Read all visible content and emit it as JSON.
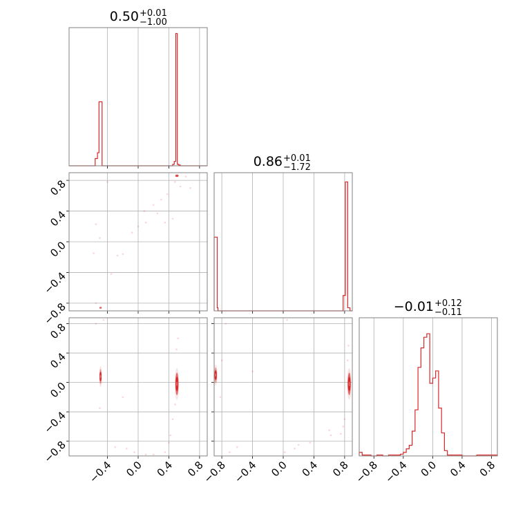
{
  "chart_data": {
    "type": "corner",
    "color": "#d62728",
    "grid": true,
    "titles": [
      {
        "value": "0.50",
        "upper": "+0.01",
        "lower": "−1.00"
      },
      {
        "value": "0.86",
        "upper": "+0.01",
        "lower": "−1.72"
      },
      {
        "value": "−0.01",
        "upper": "+0.12",
        "lower": "−0.11"
      }
    ],
    "axes": [
      {
        "range": [
          -0.9,
          0.9
        ],
        "ticks": [
          -0.4,
          0.0,
          0.4,
          0.8
        ],
        "tick_labels": [
          "−0.4",
          "0.0",
          "0.4",
          "0.8"
        ]
      },
      {
        "range": [
          -0.9,
          0.9
        ],
        "ticks": [
          -0.8,
          -0.4,
          0.0,
          0.4,
          0.8
        ],
        "tick_labels": [
          "−0.8",
          "−0.4",
          "0.0",
          "0.4",
          "0.8"
        ]
      },
      {
        "range": [
          -1.0,
          0.88
        ],
        "ticks": [
          -0.8,
          -0.4,
          0.0,
          0.4,
          0.8
        ],
        "tick_labels": [
          "−0.8",
          "−0.4",
          "0.0",
          "0.4",
          "0.8"
        ]
      }
    ],
    "histograms": [
      {
        "edges": [
          -0.9,
          -0.56,
          -0.53,
          -0.51,
          -0.49,
          -0.47,
          0.45,
          0.47,
          0.49,
          0.51,
          0.53,
          0.55,
          0.9
        ],
        "values": [
          0,
          0.05,
          0.09,
          0.44,
          0.44,
          0,
          0.01,
          0.03,
          0.91,
          0.01,
          0.005,
          0
        ]
      },
      {
        "edges": [
          -0.9,
          -0.86,
          -0.85,
          0.78,
          0.81,
          0.84,
          0.87,
          0.9
        ],
        "values": [
          0.48,
          0.02,
          0.0,
          0.1,
          0.84,
          0.02,
          0
        ]
      },
      {
        "edges": [
          -1.0,
          -0.96,
          -0.92,
          -0.84,
          -0.76,
          -0.68,
          -0.6,
          -0.52,
          -0.44,
          -0.4,
          -0.36,
          -0.32,
          -0.28,
          -0.24,
          -0.2,
          -0.16,
          -0.12,
          -0.08,
          -0.04,
          0.0,
          0.04,
          0.08,
          0.12,
          0.16,
          0.2,
          0.24,
          0.3,
          0.4,
          0.6,
          0.72,
          0.8,
          0.88
        ],
        "values": [
          0.02,
          0.005,
          0.005,
          0,
          0.005,
          0,
          0.005,
          0.005,
          0.01,
          0.02,
          0.04,
          0.06,
          0.14,
          0.26,
          0.5,
          0.61,
          0.67,
          0.69,
          0.41,
          0.44,
          0.48,
          0.27,
          0.13,
          0.03,
          0.005,
          0.005,
          0.005,
          0,
          0.005,
          0.005,
          0.005
        ]
      }
    ],
    "ranges": {
      "hist1_max": 0.95,
      "hist2_max": 0.9,
      "hist3_max": 0.78
    },
    "pairs": [
      {
        "x_param": 1,
        "y_param": 2,
        "clusters": [
          {
            "center": [
              0.505,
              0.86
            ],
            "sigma": [
              0.012,
              0.008
            ],
            "level": 1.0
          },
          {
            "center": [
              -0.49,
              -0.86
            ],
            "sigma": [
              0.008,
              0.006
            ],
            "level": 0.45
          }
        ],
        "scatter": [
          [
            0.62,
            0.85
          ],
          [
            0.48,
            0.78
          ],
          [
            0.55,
            0.72
          ],
          [
            0.38,
            0.62
          ],
          [
            0.3,
            0.55
          ],
          [
            0.25,
            0.37
          ],
          [
            0.2,
            0.48
          ],
          [
            0.08,
            0.4
          ],
          [
            0.0,
            0.2
          ],
          [
            -0.08,
            0.12
          ],
          [
            -0.2,
            -0.16
          ],
          [
            -0.27,
            -0.18
          ],
          [
            -0.35,
            -0.42
          ],
          [
            -0.5,
            0.05
          ],
          [
            -0.55,
            0.23
          ],
          [
            -0.58,
            -0.15
          ],
          [
            -0.4,
            0.78
          ],
          [
            0.45,
            0.3
          ],
          [
            0.35,
            0.25
          ],
          [
            0.68,
            0.7
          ],
          [
            -0.55,
            -0.8
          ],
          [
            0.1,
            0.25
          ]
        ]
      },
      {
        "x_param": 1,
        "y_param": 3,
        "clusters": [
          {
            "center": [
              -0.49,
              0.08
            ],
            "sigma": [
              0.008,
              0.06
            ],
            "level": 0.55
          },
          {
            "center": [
              0.505,
              -0.02
            ],
            "sigma": [
              0.012,
              0.09
            ],
            "level": 1.0
          }
        ],
        "scatter": [
          [
            0.52,
            0.6
          ],
          [
            0.5,
            0.45
          ],
          [
            0.48,
            -0.3
          ],
          [
            0.45,
            -0.5
          ],
          [
            0.42,
            -0.72
          ],
          [
            0.4,
            -0.82
          ],
          [
            0.35,
            -0.95
          ],
          [
            0.2,
            -0.98
          ],
          [
            -0.05,
            -0.95
          ],
          [
            -0.2,
            -0.2
          ],
          [
            -0.3,
            -0.88
          ],
          [
            -0.45,
            0.85
          ],
          [
            -0.55,
            0.8
          ],
          [
            -0.5,
            -0.35
          ],
          [
            0.1,
            -0.98
          ],
          [
            -0.15,
            -0.9
          ]
        ]
      },
      {
        "x_param": 2,
        "y_param": 3,
        "clusters": [
          {
            "center": [
              -0.88,
              0.1
            ],
            "sigma": [
              0.01,
              0.06
            ],
            "level": 0.5
          },
          {
            "center": [
              0.86,
              -0.02
            ],
            "sigma": [
              0.012,
              0.09
            ],
            "level": 1.0
          }
        ],
        "scatter": [
          [
            0.84,
            0.3
          ],
          [
            0.8,
            -0.5
          ],
          [
            0.78,
            -0.6
          ],
          [
            0.75,
            -0.7
          ],
          [
            0.62,
            -0.72
          ],
          [
            0.35,
            -0.82
          ],
          [
            0.15,
            -0.9
          ],
          [
            0.2,
            -0.85
          ],
          [
            -0.6,
            -0.88
          ],
          [
            -0.7,
            -0.95
          ],
          [
            0.02,
            -0.95
          ],
          [
            -0.75,
            0.8
          ],
          [
            0.85,
            0.5
          ],
          [
            0.05,
            0.85
          ],
          [
            -0.8,
            0.3
          ],
          [
            -0.82,
            -0.2
          ],
          [
            -0.4,
            0.15
          ],
          [
            0.6,
            -0.65
          ]
        ]
      }
    ]
  }
}
